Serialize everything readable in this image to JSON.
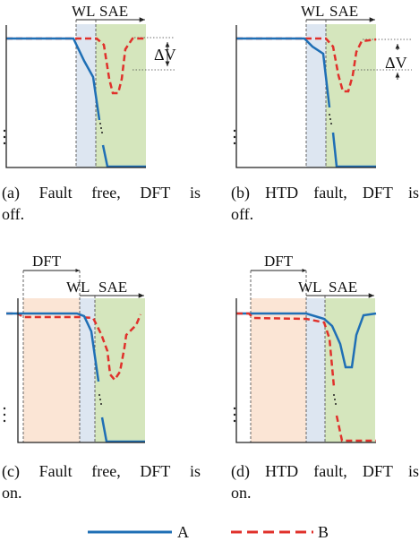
{
  "labels": {
    "wl": "WL",
    "sae": "SAE",
    "dft": "DFT",
    "delta_v": "ΔV"
  },
  "panels": [
    {
      "id": "a",
      "caption_line1": [
        "(a)",
        "Fault",
        "free,",
        "DFT",
        "is"
      ],
      "caption_line2": "off.",
      "htd_fault": false,
      "dft_on": false
    },
    {
      "id": "b",
      "caption_line1": [
        "(b)",
        "HTD",
        "fault,",
        "DFT",
        "is"
      ],
      "caption_line2": "off.",
      "htd_fault": true,
      "dft_on": false
    },
    {
      "id": "c",
      "caption_line1": [
        "(c)",
        "Fault",
        "free,",
        "DFT",
        "is"
      ],
      "caption_line2": "on.",
      "htd_fault": false,
      "dft_on": true
    },
    {
      "id": "d",
      "caption_line1": [
        "(d)",
        "HTD",
        "fault,",
        "DFT",
        "is"
      ],
      "caption_line2": "on.",
      "htd_fault": true,
      "dft_on": true
    }
  ],
  "legend": [
    {
      "name": "A",
      "color": "#1f6fb5",
      "style": "solid"
    },
    {
      "name": "B",
      "color": "#e0312b",
      "style": "dashed"
    }
  ],
  "colors": {
    "signal_a": "#1f6fb5",
    "signal_b": "#e0312b",
    "wl_region": "#dde6f1",
    "sae_region": "#d5e6bd",
    "dft_region": "#fbe5d5",
    "axis": "#222222"
  }
}
